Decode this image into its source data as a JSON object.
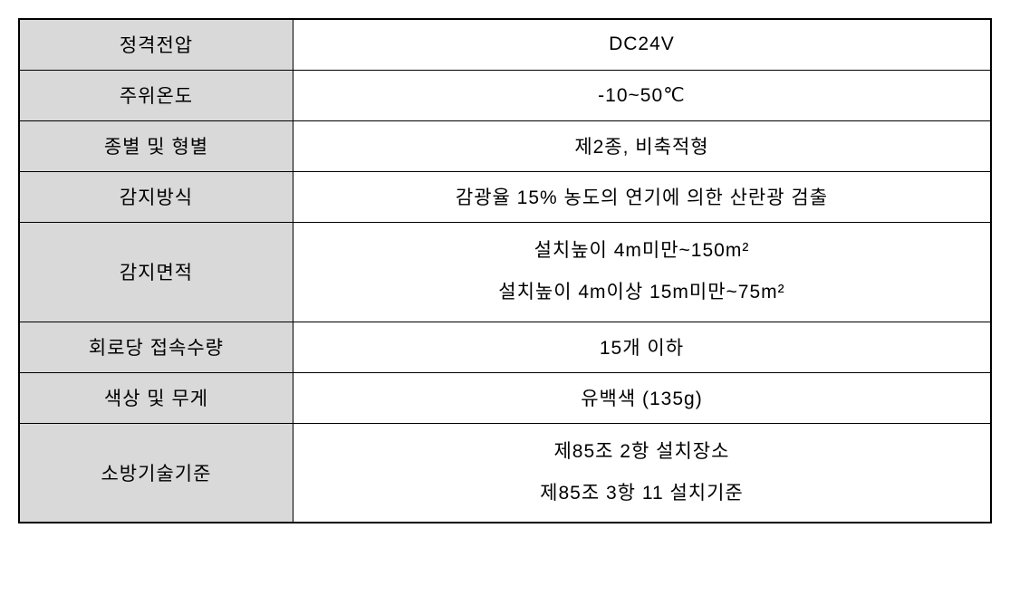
{
  "table": {
    "background_color": "#ffffff",
    "header_bg_color": "#d9d9d9",
    "border_color": "#000000",
    "text_color": "#000000",
    "font_size": 21,
    "rows": [
      {
        "label": "정격전압",
        "value": "DC24V",
        "height_class": "row-h1",
        "multiline": false
      },
      {
        "label": "주위온도",
        "value": "-10~50℃",
        "height_class": "row-h1",
        "multiline": false
      },
      {
        "label": "종별 및 형별",
        "value": "제2종, 비축적형",
        "height_class": "row-h1",
        "multiline": false
      },
      {
        "label": "감지방식",
        "value": "감광율 15% 농도의 연기에 의한 산란광 검출",
        "height_class": "row-h1",
        "multiline": false
      },
      {
        "label": "감지면적",
        "value_line1": "설치높이 4m미만~150m²",
        "value_line2": "설치높이 4m이상 15m미만~75m²",
        "height_class": "row-h2",
        "multiline": true
      },
      {
        "label": "회로당 접속수량",
        "value": "15개 이하",
        "height_class": "row-h1",
        "multiline": false
      },
      {
        "label": "색상 및 무게",
        "value": "유백색 (135g)",
        "height_class": "row-h1",
        "multiline": false
      },
      {
        "label": "소방기술기준",
        "value_line1": "제85조 2항 설치장소",
        "value_line2": "제85조 3항 11 설치기준",
        "height_class": "row-h2",
        "multiline": true
      }
    ]
  }
}
